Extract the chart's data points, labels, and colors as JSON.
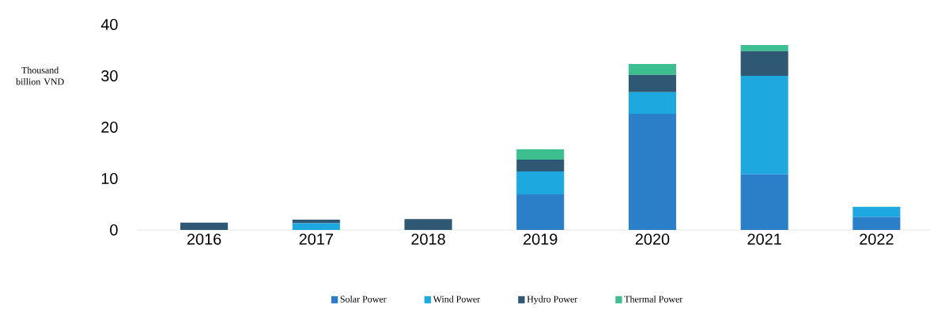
{
  "chart_data": {
    "type": "bar",
    "stacked": true,
    "ylabel": "Thousand billion VND",
    "categories": [
      "2016",
      "2017",
      "2018",
      "2019",
      "2020",
      "2021",
      "2022"
    ],
    "series": [
      {
        "name": "Solar Power",
        "color": "#2a7fc8",
        "values": [
          0,
          0,
          0,
          6.9,
          22.6,
          10.8,
          2.5
        ]
      },
      {
        "name": "Wind Power",
        "color": "#1ea8e0",
        "values": [
          0,
          1.3,
          0,
          4.5,
          4.2,
          19.2,
          2.0
        ]
      },
      {
        "name": "Hydro Power",
        "color": "#2f5875",
        "values": [
          1.4,
          0.7,
          2.1,
          2.3,
          3.4,
          4.8,
          0
        ]
      },
      {
        "name": "Thermal Power",
        "color": "#3dbf8f",
        "values": [
          0,
          0,
          0,
          2.0,
          2.1,
          1.2,
          0
        ]
      }
    ],
    "ylim": [
      0,
      40
    ],
    "yticks": [
      0,
      10,
      20,
      30,
      40
    ],
    "grid": false,
    "legend": "bottom"
  }
}
